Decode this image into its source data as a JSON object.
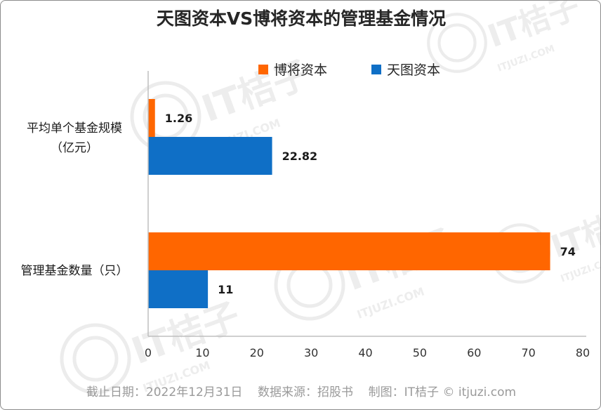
{
  "chart_data": {
    "type": "bar",
    "orientation": "horizontal",
    "title": "天图资本VS博将资本的管理基金情况",
    "categories": [
      [
        "平均单个基金规模",
        "（亿元）"
      ],
      [
        "管理基金数量（只）"
      ]
    ],
    "series": [
      {
        "name": "博将资本",
        "color": "#ff6600",
        "values": [
          1.26,
          74
        ],
        "labels": [
          "1.26",
          "74"
        ]
      },
      {
        "name": "天图资本",
        "color": "#0f6fc6",
        "values": [
          22.82,
          11
        ],
        "labels": [
          "22.82",
          "11"
        ]
      }
    ],
    "xlim": [
      0,
      80
    ],
    "xticks": [
      "0",
      "10",
      "20",
      "30",
      "40",
      "50",
      "60",
      "70",
      "80"
    ],
    "grid": false,
    "legend_position": "top-right"
  },
  "footer": "截止日期：2022年12月31日    数据来源：招股书    制图：IT桔子 © itjuzi.com",
  "watermark": {
    "brand": "IT桔子",
    "site": "ITJUZI.COM"
  }
}
